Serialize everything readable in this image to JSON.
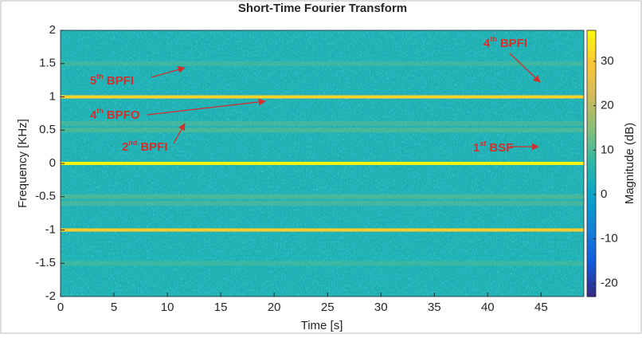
{
  "chart_data": {
    "type": "spectrogram",
    "title": "Short-Time Fourier Transform",
    "xlabel": "Time [s]",
    "ylabel": "Frequency [KHz]",
    "colorbar_label": "Magnitude (dB)",
    "xlim": [
      0,
      49
    ],
    "xticks": [
      0,
      5,
      10,
      15,
      20,
      25,
      30,
      35,
      40,
      45
    ],
    "ylim": [
      -2,
      2
    ],
    "yticks": [
      2,
      1.5,
      1,
      0.5,
      0,
      -0.5,
      -1,
      -1.5,
      -2
    ],
    "clim": [
      -23,
      37
    ],
    "cticks": [
      30,
      20,
      10,
      0,
      -10,
      -20
    ],
    "colormap": "parula",
    "background_magnitude": 4,
    "bands": [
      {
        "frequency": 1.5,
        "magnitude": 10
      },
      {
        "frequency": 0.6,
        "magnitude": 11
      },
      {
        "frequency": 0.5,
        "magnitude": 12
      },
      {
        "frequency": -0.5,
        "magnitude": 12
      },
      {
        "frequency": -0.6,
        "magnitude": 11
      },
      {
        "frequency": -1.5,
        "magnitude": 10
      },
      {
        "frequency": 1,
        "magnitude": 31
      },
      {
        "frequency": -1,
        "magnitude": 30
      },
      {
        "frequency": 0,
        "magnitude": 36
      }
    ],
    "annotations": [
      {
        "ordinal": "5",
        "suffix": "th",
        "name": "BPFI"
      },
      {
        "ordinal": "4",
        "suffix": "th",
        "name": "BPFO"
      },
      {
        "ordinal": "2",
        "suffix": "nd",
        "name": "BPFI"
      },
      {
        "ordinal": "4",
        "suffix": "th",
        "name": "BPFI"
      },
      {
        "ordinal": "1",
        "suffix": "st",
        "name": "BSF"
      }
    ]
  }
}
